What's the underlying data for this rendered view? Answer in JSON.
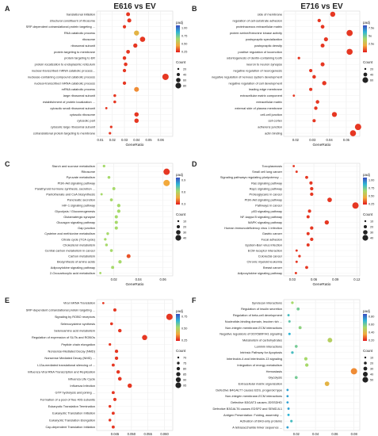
{
  "colors": {
    "high": "#e31a1c",
    "mid": "#a6d96a",
    "low": "#3b4cc0",
    "panel": "#ffffff",
    "grid": "#ececec"
  },
  "chart_data": [
    {
      "panel": "A",
      "title": "E616 vs EV",
      "type": "scatter",
      "xlabel": "GeneRatio",
      "ticks": [
        "0.01",
        "0.02",
        "0.03",
        "0.04",
        "0.05",
        "0.06"
      ],
      "xlim": [
        0.007,
        0.07
      ],
      "legend": {
        "color_title": "padj",
        "size_title": "Count",
        "color_ticks": [
          "1.00",
          "0.75",
          "0.50",
          "0.25"
        ],
        "size_ticks": [
          "20",
          "40",
          "60",
          "80"
        ]
      },
      "categories": [
        "translational initiation",
        "structural constituent of ribosome",
        "SRP-dependent cotranslational protein targeting ...",
        "RNA catabolic process",
        "ribosome",
        "ribosomal subunit",
        "protein targeting to membrane",
        "protein targeting to ER",
        "protein localization to endoplasmic reticulum",
        "nuclear-transcribed mRNA catabolic process...",
        "nuclease-containing compound catabolic process",
        "nuclear-transcribed mRNA catabolic process",
        "mRNA catabolic process",
        "large ribosomal subunit",
        "establishment of protein localization ...",
        "cytosolic small ribosomal subunit",
        "cytosolic ribosome",
        "cytosolic part",
        "cytosolic large ribosomal subunit",
        "cotranslational protein targeting to membrane"
      ],
      "x": [
        0.033,
        0.034,
        0.03,
        0.04,
        0.045,
        0.039,
        0.033,
        0.03,
        0.031,
        0.03,
        0.064,
        0.03,
        0.04,
        0.022,
        0.022,
        0.015,
        0.04,
        0.04,
        0.019,
        0.018
      ],
      "padj": [
        0.05,
        0.05,
        0.05,
        0.3,
        0.05,
        0.05,
        0.05,
        0.05,
        0.05,
        0.05,
        0.05,
        0.05,
        0.2,
        0.05,
        0.05,
        0.05,
        0.05,
        0.05,
        0.05,
        0.05
      ],
      "count": [
        40,
        42,
        32,
        55,
        58,
        44,
        38,
        35,
        36,
        33,
        72,
        33,
        52,
        25,
        26,
        18,
        46,
        46,
        22,
        22
      ]
    },
    {
      "panel": "B",
      "title": "E716 vs EV",
      "type": "scatter",
      "xlabel": "GeneRatio",
      "ticks": [
        "0.02",
        "0.03",
        "0.04",
        "0.05"
      ],
      "xlim": [
        0.013,
        0.058
      ],
      "legend": {
        "color_title": "padj",
        "size_title": "Count",
        "color_ticks": [
          "7.5e",
          "5e",
          "2.5e",
          ""
        ],
        "size_ticks": [
          "20",
          "40",
          "60"
        ]
      },
      "categories": [
        "side of membrane",
        "regulation of cell-substrate adhesion",
        "proteinaceous extracellular matrix",
        "protein serine/threonine kinase activity",
        "postsynaptic specialization",
        "postsynaptic density",
        "positive regulation of locomotion",
        "odontogenesis of dentin-containing tooth",
        "neuron to neuron synapse",
        "negative regulation of neurogenesis",
        "negative regulation of nervous system development",
        "negative regulation of cell development",
        "leading edge membrane",
        "extracellular matrix component",
        "extracellular matrix",
        "external side of plasma membrane",
        "cell-cell junction",
        "cell cortex",
        "adherens junction",
        "actin binding"
      ],
      "x": [
        0.042,
        0.034,
        0.036,
        0.052,
        0.038,
        0.036,
        0.052,
        0.022,
        0.036,
        0.029,
        0.031,
        0.037,
        0.029,
        0.019,
        0.033,
        0.032,
        0.043,
        0.031,
        0.057,
        0.054
      ],
      "padj": [
        0.05,
        0.05,
        0.05,
        0.05,
        0.05,
        0.05,
        0.05,
        0.05,
        0.05,
        0.05,
        0.05,
        0.05,
        0.05,
        0.05,
        0.05,
        0.05,
        0.05,
        0.05,
        0.05,
        0.05
      ],
      "count": [
        48,
        28,
        32,
        60,
        36,
        34,
        58,
        18,
        35,
        27,
        30,
        38,
        26,
        14,
        30,
        28,
        46,
        26,
        62,
        58
      ]
    },
    {
      "panel": "C",
      "title": "",
      "type": "scatter",
      "xlabel": "GeneRatio",
      "ticks": [
        "0.02",
        "0.04",
        "0.06"
      ],
      "xlim": [
        0.006,
        0.068
      ],
      "legend": {
        "color_title": "padj",
        "size_title": "Count",
        "color_ticks": [
          "0.9",
          "0.6",
          "0.3"
        ],
        "size_ticks": [
          "10",
          "20",
          "30",
          "40"
        ]
      },
      "categories": [
        "Starch and sucrose metabolism",
        "Ribosome",
        "Pyruvate metabolism",
        "PI3K-Akt signaling pathway",
        "Parathyroid hormone synthesis, secretion ...",
        "Pantothenate and CoA biosynthesis",
        "Pancreatic secretion",
        "HIF-1 signaling pathway",
        "Glycolysis / Gluconeogenesis",
        "Glutamatergic synapse",
        "Glucagon signaling pathway",
        "Gap junction",
        "Cysteine and methionine metabolism",
        "Citrate cycle (TCA cycle)",
        "Cholesterol metabolism",
        "Central carbon metabolism in cancer",
        "Carbon metabolism",
        "Biosynthesis of amino acids",
        "Adipocytokine signaling pathway",
        "2-Oxocarboxylic acid metabolism"
      ],
      "x": [
        0.012,
        0.063,
        0.016,
        0.063,
        0.02,
        0.01,
        0.018,
        0.024,
        0.024,
        0.022,
        0.022,
        0.022,
        0.015,
        0.013,
        0.014,
        0.018,
        0.032,
        0.025,
        0.019,
        0.009
      ],
      "padj": [
        0.5,
        0.05,
        0.5,
        0.25,
        0.5,
        0.5,
        0.5,
        0.5,
        0.5,
        0.5,
        0.5,
        0.5,
        0.5,
        0.5,
        0.5,
        0.5,
        0.1,
        0.5,
        0.5,
        0.5
      ],
      "count": [
        8,
        40,
        10,
        40,
        12,
        6,
        11,
        15,
        15,
        13,
        13,
        13,
        9,
        8,
        9,
        11,
        20,
        15,
        12,
        5
      ]
    },
    {
      "panel": "D",
      "title": "",
      "type": "scatter",
      "xlabel": "GeneRatio",
      "ticks": [
        "0.03",
        "0.06",
        "0.09",
        "0.12"
      ],
      "xlim": [
        0.018,
        0.124
      ],
      "legend": {
        "color_title": "padj",
        "size_title": "Count",
        "color_ticks": [
          "1.00",
          "0.75",
          "0.50",
          "0.25"
        ],
        "size_ticks": [
          "10",
          "20",
          "30",
          "40"
        ]
      },
      "categories": [
        "Toxoplasmosis",
        "Small cell lung cancer",
        "Signaling pathways regulating pluripotency ...",
        "Ras signaling pathway",
        "Rap1 signaling pathway",
        "Proteoglycans in cancer",
        "PI3K-Akt signaling pathway",
        "Pathways in cancer",
        "p53 signaling pathway",
        "NF-kappa B signaling pathway",
        "MAPK signaling pathway",
        "Human immunodeficiency virus 1 infection",
        "Gastric cancer",
        "Focal adhesion",
        "Epstein-Barr virus infection",
        "ECM-receptor interaction",
        "Colorectal cancer",
        "Chronic myeloid leukemia",
        "Breast cancer",
        "Adipocytokine signaling pathway"
      ],
      "x": [
        0.032,
        0.036,
        0.05,
        0.056,
        0.057,
        0.057,
        0.082,
        0.118,
        0.054,
        0.052,
        0.078,
        0.057,
        0.052,
        0.057,
        0.052,
        0.036,
        0.04,
        0.036,
        0.05,
        0.035
      ],
      "padj": [
        0.05,
        0.05,
        0.05,
        0.05,
        0.05,
        0.05,
        0.05,
        0.05,
        0.05,
        0.05,
        0.05,
        0.05,
        0.05,
        0.05,
        0.05,
        0.05,
        0.05,
        0.05,
        0.05,
        0.05
      ],
      "count": [
        10,
        11,
        16,
        18,
        19,
        19,
        28,
        42,
        18,
        17,
        26,
        19,
        17,
        19,
        17,
        11,
        13,
        11,
        16,
        11
      ]
    },
    {
      "panel": "E",
      "title": "",
      "type": "scatter",
      "xlabel": "GeneRatio",
      "ticks": [
        "0.045",
        "0.050",
        "0.055",
        "0.060"
      ],
      "xlim": [
        0.0395,
        0.0625
      ],
      "legend": {
        "color_title": "padj",
        "size_title": "Count",
        "color_ticks": [
          "0.75",
          "0.50",
          "0.25"
        ],
        "size_ticks": [
          "70",
          "75",
          "80",
          "85",
          "90",
          "95"
        ]
      },
      "categories": [
        "Viral mRNA Translation",
        "SRP-dependent cotranslational protein targeting ...",
        "Signaling by ROBO receptors",
        "Selenocysteine synthesis",
        "Selenoamino acid metabolism",
        "Regulation of expression of SLITs and ROBOs",
        "Peptide chain elongation",
        "Nonsense-Mediated Decay (NMD)",
        "Nonsense Mediated Decay (NMD) ...",
        "L13a-mediated translational silencing of ...",
        "Influenza Viral RNA Transcription and Replication",
        "Influenza Life Cycle",
        "Influenza Infection",
        "GTP hydrolysis and joining ...",
        "Formation of a pool of free 40S subunits",
        "Eukaryotic Translation Termination",
        "Eukaryotic Translation Initiation",
        "Eukaryotic Translation Elongation",
        "Cap-dependent Translation Initiation"
      ],
      "x": [
        0.0415,
        0.045,
        0.0615,
        0.044,
        0.0465,
        0.054,
        0.0435,
        0.0455,
        0.0455,
        0.0445,
        0.046,
        0.0465,
        0.0495,
        0.0445,
        0.045,
        0.0435,
        0.0445,
        0.0435,
        0.0445
      ],
      "padj": [
        0.05,
        0.05,
        0.05,
        0.05,
        0.05,
        0.05,
        0.05,
        0.05,
        0.05,
        0.05,
        0.05,
        0.05,
        0.05,
        0.05,
        0.05,
        0.05,
        0.05,
        0.05,
        0.05
      ],
      "count": [
        70,
        76,
        95,
        74,
        78,
        88,
        72,
        77,
        77,
        75,
        78,
        79,
        83,
        75,
        76,
        73,
        75,
        73,
        75
      ]
    },
    {
      "panel": "F",
      "title": "",
      "type": "scatter",
      "xlabel": "GeneRatio",
      "ticks": [
        "0.02",
        "0.04",
        "0.06",
        "0.08"
      ],
      "xlim": [
        0.007,
        0.086
      ],
      "legend": {
        "color_title": "padj",
        "size_title": "Count",
        "color_ticks": [
          "0.80",
          "0.60",
          "0.40",
          "0.20"
        ],
        "size_ticks": [
          "10",
          "20",
          "30",
          "40",
          "50"
        ]
      },
      "categories": [
        "Syndecan interactions",
        "Regulation of insulin secretion",
        "Regulation of beta-cell development",
        "Nucleotide-binding domain, leucine rich ...",
        "Non-integrin membrane-ECM interactions",
        "Negative regulators of DDX58/IFIH1 signaling",
        "Metabolism of carbohydrates",
        "Laminin interactions",
        "Intrinsic Pathway for Apoptosis",
        "Interleukin-4 and Interleukin-13 signaling",
        "Integration of energy metabolism",
        "Hemostasis",
        "Glycolysis",
        "Extracellular matrix organization",
        "Defective B4GALT7 causes EDS, progeroid type",
        "Non-integrin membrane-ECM interactions",
        "Defective B3GAT3 causes JDSSDHD",
        "Defective B3GALT6 causes EDSP2 and SEMDJL1",
        "Antigen Presentation: Folding, assembly ...",
        "Activation of BH3-only proteins",
        "A tetrasaccharide linker sequence ..."
      ],
      "x": [
        0.016,
        0.022,
        0.012,
        0.013,
        0.024,
        0.013,
        0.055,
        0.02,
        0.016,
        0.03,
        0.031,
        0.08,
        0.02,
        0.052,
        0.011,
        0.011,
        0.011,
        0.012,
        0.012,
        0.015,
        0.011
      ],
      "padj": [
        0.5,
        0.6,
        0.7,
        0.65,
        0.55,
        0.75,
        0.45,
        0.6,
        0.7,
        0.5,
        0.5,
        0.2,
        0.6,
        0.3,
        0.8,
        0.8,
        0.8,
        0.8,
        0.75,
        0.7,
        0.8
      ],
      "count": [
        8,
        12,
        5,
        6,
        13,
        6,
        30,
        11,
        8,
        16,
        17,
        48,
        11,
        29,
        4,
        4,
        4,
        5,
        5,
        7,
        4
      ]
    }
  ]
}
